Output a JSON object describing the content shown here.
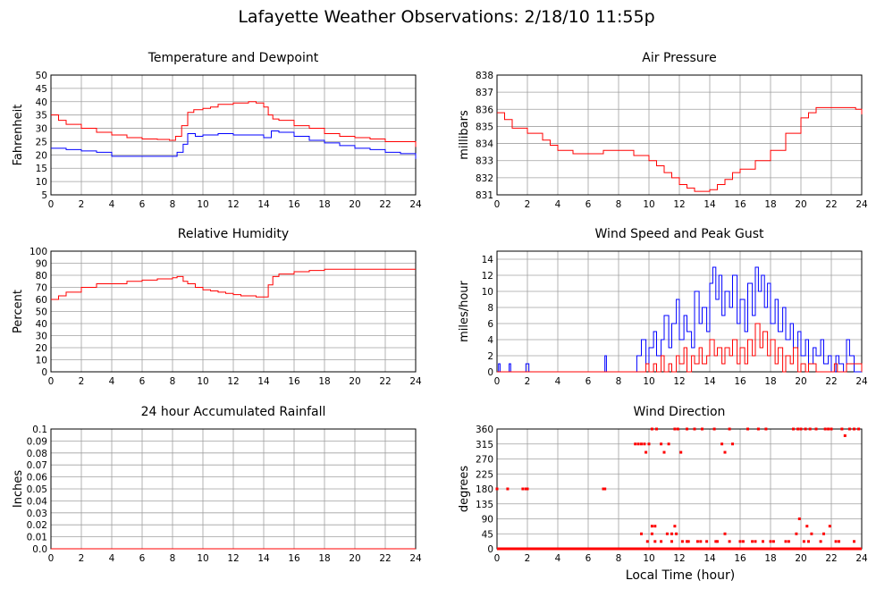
{
  "page_title": "Lafayette Weather Observations: 2/18/10 11:55p",
  "x_axis_title": "Local Time (hour)",
  "colors": {
    "red": "#ff0000",
    "blue": "#0000ff",
    "grid": "#a0a0a0"
  },
  "chart_data": [
    {
      "id": "temperature",
      "type": "line",
      "title": "Temperature and Dewpoint",
      "ylabel": "Fahrenheit",
      "xlim": [
        0,
        24
      ],
      "ylim": [
        5,
        50
      ],
      "xticks": [
        0,
        2,
        4,
        6,
        8,
        10,
        12,
        14,
        16,
        18,
        20,
        22,
        24
      ],
      "yticks": [
        5,
        10,
        15,
        20,
        25,
        30,
        35,
        40,
        45,
        50
      ],
      "grid": true,
      "series": [
        {
          "color": "red",
          "x": [
            0,
            0.5,
            1,
            2,
            3,
            4,
            5,
            6,
            7,
            7.8,
            8.2,
            8.6,
            9,
            9.4,
            10,
            10.5,
            11,
            11.5,
            12,
            12.5,
            13,
            13.5,
            14,
            14.3,
            14.6,
            15,
            16,
            17,
            18,
            19,
            20,
            21,
            22,
            23,
            24
          ],
          "y": [
            35,
            33,
            31.5,
            30,
            28.5,
            27.5,
            26.5,
            26,
            25.8,
            25.5,
            27,
            31,
            36,
            37,
            37.5,
            38,
            39,
            39,
            39.5,
            39.5,
            40,
            39.5,
            38,
            35,
            33.5,
            33,
            31,
            30,
            28,
            27,
            26.5,
            26,
            25,
            25,
            23
          ]
        },
        {
          "color": "blue",
          "x": [
            0,
            1,
            2,
            3,
            4,
            5,
            6,
            7,
            7.8,
            8.3,
            8.7,
            9,
            9.5,
            10,
            11,
            12,
            13,
            14,
            14.5,
            15,
            16,
            17,
            18,
            19,
            20,
            21,
            22,
            23,
            24
          ],
          "y": [
            22.5,
            22,
            21.5,
            21,
            19.5,
            19.5,
            19.5,
            19.5,
            19.5,
            21,
            24,
            28,
            27,
            27.5,
            28,
            27.5,
            27.5,
            26.5,
            29,
            28.5,
            27,
            25.5,
            24.5,
            23.5,
            22.5,
            22,
            21,
            20.5,
            18.5
          ]
        }
      ]
    },
    {
      "id": "pressure",
      "type": "line",
      "title": "Air Pressure",
      "ylabel": "millibars",
      "xlim": [
        0,
        24
      ],
      "ylim": [
        831,
        838
      ],
      "xticks": [
        0,
        2,
        4,
        6,
        8,
        10,
        12,
        14,
        16,
        18,
        20,
        22,
        24
      ],
      "yticks": [
        831,
        832,
        833,
        834,
        835,
        836,
        837,
        838
      ],
      "grid": true,
      "series": [
        {
          "color": "red",
          "x": [
            0,
            0.5,
            1,
            2,
            2.5,
            3,
            3.5,
            4,
            5,
            6,
            7,
            8,
            9,
            10,
            10.5,
            11,
            11.5,
            12,
            12.5,
            13,
            13.5,
            14,
            14.5,
            15,
            15.5,
            16,
            17,
            18,
            19,
            20,
            20.5,
            21,
            22,
            23,
            23.6,
            24
          ],
          "y": [
            835.8,
            835.4,
            834.9,
            834.6,
            834.6,
            834.2,
            833.9,
            833.6,
            833.4,
            833.4,
            833.6,
            833.6,
            833.3,
            833,
            832.7,
            832.3,
            832,
            831.6,
            831.4,
            831.2,
            831.2,
            831.3,
            831.6,
            831.9,
            832.3,
            832.5,
            833,
            833.6,
            834.6,
            835.5,
            835.8,
            836.1,
            836.1,
            836.1,
            836,
            835.7
          ]
        }
      ]
    },
    {
      "id": "humidity",
      "type": "line",
      "title": "Relative Humidity",
      "ylabel": "Percent",
      "xlim": [
        0,
        24
      ],
      "ylim": [
        0,
        100
      ],
      "xticks": [
        0,
        2,
        4,
        6,
        8,
        10,
        12,
        14,
        16,
        18,
        20,
        22,
        24
      ],
      "yticks": [
        0,
        10,
        20,
        30,
        40,
        50,
        60,
        70,
        80,
        90,
        100
      ],
      "grid": true,
      "series": [
        {
          "color": "red",
          "x": [
            0,
            0.5,
            1,
            2,
            3,
            4,
            5,
            6,
            7,
            8,
            8.3,
            8.7,
            9,
            9.5,
            10,
            10.5,
            11,
            11.5,
            12,
            12.5,
            13,
            13.5,
            14,
            14.3,
            14.6,
            15,
            16,
            17,
            18,
            19,
            20,
            21,
            22,
            23,
            24
          ],
          "y": [
            60,
            63,
            66,
            70,
            73,
            73,
            75,
            76,
            77,
            78,
            79,
            75,
            73,
            70,
            68,
            67,
            66,
            65,
            64,
            63,
            63,
            62,
            62,
            72,
            79,
            81,
            83,
            84,
            85,
            85,
            85,
            85,
            85,
            85,
            85
          ]
        }
      ]
    },
    {
      "id": "wind",
      "type": "line",
      "title": "Wind Speed and Peak Gust",
      "ylabel": "miles/hour",
      "xlim": [
        0,
        24
      ],
      "ylim": [
        0,
        15
      ],
      "xticks": [
        0,
        2,
        4,
        6,
        8,
        10,
        12,
        14,
        16,
        18,
        20,
        22,
        24
      ],
      "yticks": [
        0,
        2,
        4,
        6,
        8,
        10,
        12,
        14
      ],
      "grid": true,
      "series": [
        {
          "color": "blue",
          "x": [
            0,
            0.1,
            0.2,
            0.7,
            0.8,
            0.9,
            1.8,
            1.9,
            2,
            2.1,
            2.2,
            7,
            7.1,
            7.2,
            8.9,
            9.2,
            9.5,
            9.8,
            10,
            10.3,
            10.5,
            10.8,
            11,
            11.3,
            11.5,
            11.8,
            12,
            12.3,
            12.5,
            12.8,
            13,
            13.3,
            13.5,
            13.8,
            14,
            14.2,
            14.4,
            14.6,
            14.8,
            15,
            15.3,
            15.5,
            15.8,
            16,
            16.3,
            16.5,
            16.8,
            17,
            17.2,
            17.4,
            17.6,
            17.8,
            18,
            18.3,
            18.5,
            18.8,
            19,
            19.3,
            19.5,
            19.8,
            20,
            20.3,
            20.5,
            20.8,
            21,
            21.3,
            21.5,
            21.8,
            22,
            22.3,
            22.5,
            22.8,
            23,
            23.2,
            23.5,
            24
          ],
          "y": [
            0,
            1,
            0,
            0,
            1,
            0,
            0,
            1,
            1,
            0,
            0,
            0,
            2,
            0,
            0,
            2,
            4,
            1,
            3,
            5,
            2,
            4,
            7,
            3,
            6,
            9,
            4,
            7,
            5,
            3,
            10,
            6,
            8,
            5,
            11,
            13,
            9,
            12,
            7,
            10,
            8,
            12,
            6,
            9,
            5,
            11,
            7,
            13,
            10,
            12,
            8,
            11,
            6,
            9,
            5,
            8,
            4,
            6,
            3,
            5,
            2,
            4,
            1,
            3,
            2,
            4,
            1,
            2,
            0,
            2,
            1,
            0,
            4,
            2,
            0,
            0
          ]
        },
        {
          "color": "red",
          "x": [
            0,
            9.5,
            9.8,
            10,
            10.3,
            10.5,
            10.8,
            11,
            11.3,
            11.5,
            11.8,
            12,
            12.3,
            12.5,
            12.8,
            13,
            13.3,
            13.5,
            13.8,
            14,
            14.3,
            14.5,
            14.8,
            15,
            15.3,
            15.5,
            15.8,
            16,
            16.3,
            16.5,
            16.8,
            17,
            17.3,
            17.5,
            17.8,
            18,
            18.3,
            18.5,
            18.8,
            19,
            19.3,
            19.5,
            19.8,
            20,
            20.3,
            20.5,
            21,
            22,
            22.2,
            22.4,
            23,
            24
          ],
          "y": [
            0,
            0,
            1,
            0,
            1,
            0,
            2,
            0,
            1,
            0,
            2,
            1,
            3,
            0,
            2,
            1,
            3,
            1,
            2,
            4,
            2,
            3,
            1,
            3,
            2,
            4,
            1,
            3,
            1,
            4,
            2,
            6,
            3,
            5,
            2,
            4,
            1,
            3,
            0,
            2,
            1,
            3,
            0,
            1,
            0,
            1,
            0,
            0,
            1,
            0,
            1,
            0
          ]
        }
      ]
    },
    {
      "id": "rainfall",
      "type": "line",
      "title": "24 hour Accumulated Rainfall",
      "ylabel": "Inches",
      "xlim": [
        0,
        24
      ],
      "ylim": [
        0,
        0.1
      ],
      "xticks": [
        0,
        2,
        4,
        6,
        8,
        10,
        12,
        14,
        16,
        18,
        20,
        22,
        24
      ],
      "yticks": [
        "0.0",
        "0.01",
        "0.02",
        "0.03",
        "0.04",
        "0.05",
        "0.06",
        "0.07",
        "0.08",
        "0.09",
        "0.1"
      ],
      "grid": true,
      "series": [
        {
          "color": "red",
          "x": [
            0,
            24
          ],
          "y": [
            0,
            0
          ]
        }
      ]
    },
    {
      "id": "direction",
      "type": "scatter",
      "title": "Wind Direction",
      "ylabel": "degrees",
      "xlim": [
        0,
        24
      ],
      "ylim": [
        0,
        360
      ],
      "xticks": [
        0,
        2,
        4,
        6,
        8,
        10,
        12,
        14,
        16,
        18,
        20,
        22,
        24
      ],
      "yticks": [
        0,
        45,
        90,
        135,
        180,
        225,
        270,
        315,
        360
      ],
      "grid": true,
      "series": [
        {
          "color": "red",
          "zero_runs": [
            [
              0,
              24
            ]
          ],
          "x": [
            0,
            0.7,
            1.7,
            1.9,
            2,
            7,
            7.1,
            9.1,
            9.3,
            9.5,
            9.7,
            9.8,
            10,
            10.2,
            10.5,
            10.8,
            11,
            11.3,
            11.7,
            11.9,
            12.1,
            12.5,
            13,
            13.5,
            14.3,
            14.8,
            15,
            15.3,
            15.5,
            16.5,
            17.2,
            17.7,
            19.5,
            19.8,
            20,
            20.3,
            20.6,
            21,
            21.6,
            21.8,
            22,
            22.7,
            22.9,
            23.2,
            23.5,
            23.8,
            9.5,
            9.9,
            10.2,
            10.4,
            11.2,
            11.5,
            11.8,
            12.2,
            12.6,
            13.2,
            13.8,
            14.4,
            15.3,
            16,
            16.8,
            17.5,
            18.2,
            19,
            19.7,
            20.2,
            20.7,
            21.3,
            22.3,
            9.6,
            10.8,
            11.5,
            12.5,
            13.4,
            14.5,
            15,
            16.2,
            17,
            18,
            19.2,
            20.5,
            21.5,
            22.5,
            23.5,
            10.2,
            10.4,
            11.7,
            19.9,
            20.4,
            21.9
          ],
          "y": [
            180,
            180,
            180,
            180,
            180,
            180,
            180,
            315,
            315,
            315,
            315,
            290,
            315,
            360,
            360,
            315,
            290,
            315,
            360,
            360,
            290,
            360,
            360,
            360,
            360,
            315,
            290,
            360,
            315,
            360,
            360,
            360,
            360,
            360,
            360,
            360,
            360,
            360,
            360,
            360,
            360,
            360,
            340,
            360,
            360,
            360,
            45,
            22,
            45,
            22,
            45,
            22,
            45,
            22,
            22,
            22,
            22,
            22,
            22,
            22,
            22,
            22,
            22,
            22,
            45,
            22,
            45,
            22,
            22,
            0,
            22,
            45,
            22,
            22,
            22,
            45,
            22,
            22,
            22,
            22,
            22,
            45,
            22,
            22,
            68,
            68,
            68,
            90,
            68,
            68
          ]
        }
      ]
    }
  ]
}
